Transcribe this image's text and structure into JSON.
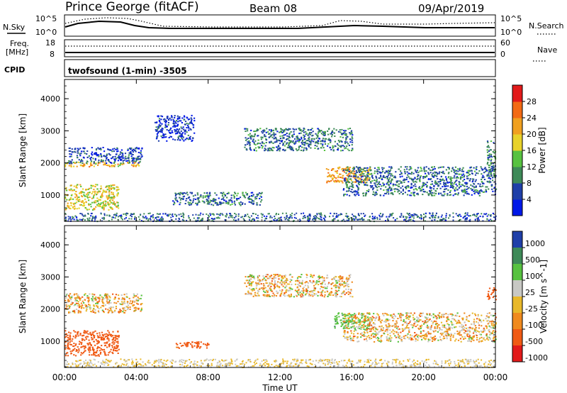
{
  "header": {
    "title": "Prince George (fitACF)",
    "beam": "Beam 08",
    "date": "09/Apr/2019"
  },
  "noise_panel": {
    "left_label": "N.Sky",
    "right_label": "N.Search",
    "left_ticks": [
      "10^5",
      "10^0"
    ],
    "right_ticks": [
      "10^5",
      "10^0"
    ]
  },
  "freq_panel": {
    "left_label_1": "Freq.",
    "left_label_2": "[MHz]",
    "left_ticks": [
      "18",
      "8"
    ],
    "right_label": "Nave",
    "right_ticks": [
      "60",
      "0"
    ]
  },
  "cpid": {
    "label": "CPID",
    "text": "twofsound (1-min) -3505"
  },
  "colors": {
    "power": [
      "#0018e8",
      "#1f3fa8",
      "#3e8a58",
      "#57c240",
      "#e8d22a",
      "#f0a020",
      "#f36a14",
      "#e21a1a"
    ],
    "velocity": [
      "#1f3fa8",
      "#3e8a58",
      "#57c240",
      "#c8c8c4",
      "#e8b82a",
      "#f08a1e",
      "#f05a14",
      "#e21a1a"
    ],
    "ground_scatter": "#c8c8c4"
  },
  "chart_data": [
    {
      "type": "heatmap",
      "title": "",
      "xlabel": "Time UT",
      "ylabel": "Slant Range [km]",
      "xlim_hours": [
        0,
        24
      ],
      "ylim_km": [
        180,
        4600
      ],
      "x_ticks": [
        "00:00",
        "04:00",
        "08:00",
        "12:00",
        "16:00",
        "20:00",
        "00:00"
      ],
      "y_ticks": [
        "1000",
        "2000",
        "3000",
        "4000"
      ],
      "colorbar_label": "Power [dB]",
      "colorbar_ticks": [
        "4",
        "8",
        "12",
        "16",
        "20",
        "24",
        "28"
      ],
      "echo_regions": [
        {
          "from_h": 0.0,
          "to_h": 4.3,
          "range_km": [
            1900,
            2050
          ],
          "power_db": 20
        },
        {
          "from_h": 0.2,
          "to_h": 4.3,
          "range_km": [
            2000,
            2500
          ],
          "power_db": 6
        },
        {
          "from_h": 0.0,
          "to_h": 3.0,
          "range_km": [
            550,
            1350
          ],
          "power_db": 18
        },
        {
          "from_h": 5.0,
          "to_h": 7.2,
          "range_km": [
            2700,
            3500
          ],
          "power_db": 4
        },
        {
          "from_h": 6.0,
          "to_h": 11.0,
          "range_km": [
            700,
            1100
          ],
          "power_db": 8
        },
        {
          "from_h": 10.0,
          "to_h": 16.0,
          "range_km": [
            2400,
            3100
          ],
          "power_db": 8
        },
        {
          "from_h": 14.5,
          "to_h": 17.0,
          "range_km": [
            1400,
            1900
          ],
          "power_db": 22
        },
        {
          "from_h": 15.5,
          "to_h": 24.0,
          "range_km": [
            1000,
            1900
          ],
          "power_db": 8
        },
        {
          "from_h": 23.5,
          "to_h": 24.0,
          "range_km": [
            1600,
            2700
          ],
          "power_db": 10
        }
      ]
    },
    {
      "type": "heatmap",
      "title": "",
      "xlabel": "Time UT",
      "ylabel": "Slant Range [km]",
      "xlim_hours": [
        0,
        24
      ],
      "ylim_km": [
        180,
        4600
      ],
      "x_ticks": [
        "00:00",
        "04:00",
        "08:00",
        "12:00",
        "16:00",
        "20:00",
        "00:00"
      ],
      "y_ticks": [
        "1000",
        "2000",
        "3000",
        "4000"
      ],
      "colorbar_label": "Velocity [m s^-1]",
      "colorbar_ticks": [
        "1000",
        "500",
        "100",
        "25",
        "-25",
        "-100",
        "-500",
        "-1000"
      ],
      "echo_regions": [
        {
          "from_h": 0.0,
          "to_h": 4.3,
          "range_km": [
            1900,
            2500
          ],
          "velocity_ms": 0
        },
        {
          "from_h": 0.0,
          "to_h": 3.0,
          "range_km": [
            550,
            1350
          ],
          "velocity_ms": -300
        },
        {
          "from_h": 6.0,
          "to_h": 8.0,
          "range_km": [
            800,
            1000
          ],
          "velocity_ms": -200
        },
        {
          "from_h": 10.0,
          "to_h": 16.0,
          "range_km": [
            2400,
            3100
          ],
          "velocity_ms": 0
        },
        {
          "from_h": 15.0,
          "to_h": 17.0,
          "range_km": [
            1400,
            1900
          ],
          "velocity_ms": 400
        },
        {
          "from_h": 15.5,
          "to_h": 24.0,
          "range_km": [
            1000,
            1900
          ],
          "velocity_ms": 0
        },
        {
          "from_h": 23.5,
          "to_h": 24.0,
          "range_km": [
            2300,
            2700
          ],
          "velocity_ms": -400
        }
      ]
    }
  ]
}
